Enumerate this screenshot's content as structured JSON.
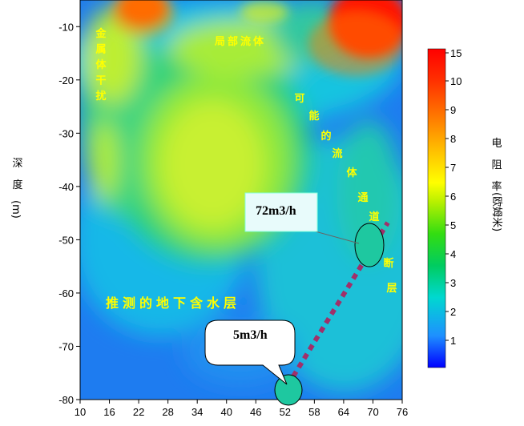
{
  "chart_data": {
    "type": "heatmap",
    "title": "",
    "xlabel": "",
    "ylabel": "深度(m)",
    "x_ticks": [
      10,
      16,
      22,
      28,
      34,
      40,
      46,
      52,
      58,
      64,
      70,
      76
    ],
    "y_ticks": [
      -10,
      -20,
      -30,
      -40,
      -50,
      -60,
      -70,
      -80
    ],
    "xlim": [
      10,
      76
    ],
    "ylim": [
      -80,
      -5
    ],
    "colorbar": {
      "label": "电阻率(欧姆米)",
      "ticks": [
        1,
        2,
        3,
        4,
        5,
        6,
        7,
        8,
        9,
        10,
        15
      ],
      "colors": [
        "#0000ff",
        "#1e90ff",
        "#00e5c8",
        "#22cc33",
        "#9be000",
        "#ffff00",
        "#ffc000",
        "#ff8000",
        "#ff4000",
        "#ff0000"
      ]
    },
    "annotations": {
      "metal": "金属体干扰",
      "local_fluid": "局部流体",
      "channel": "可能的流体通道",
      "fault": "断层",
      "aquifer": "推测的地下含水层",
      "flow_upper": "72m3/h",
      "flow_lower": "5m3/h"
    },
    "wells": [
      {
        "label": "72m3/h",
        "x": 69,
        "y": -51
      },
      {
        "label": "5m3/h",
        "x": 53,
        "y": -78
      }
    ]
  }
}
